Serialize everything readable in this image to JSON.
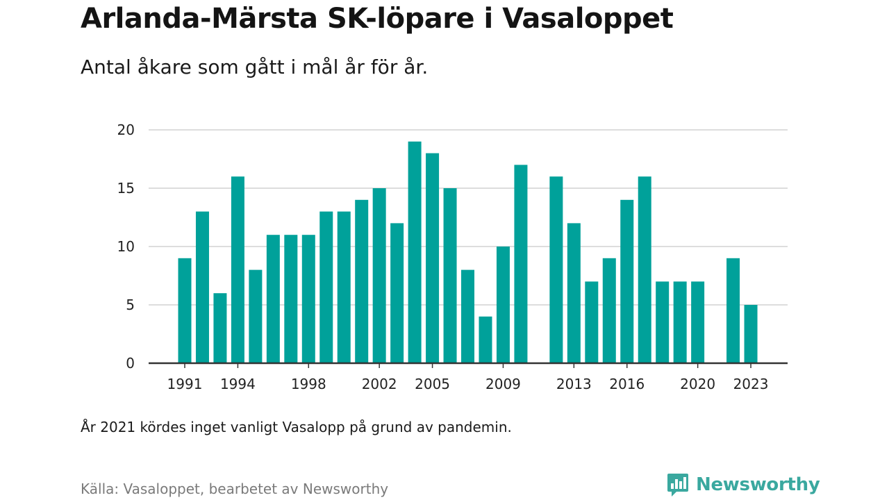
{
  "title": "Arlanda-Märsta SK-löpare i Vasaloppet",
  "subtitle": "Antal åkare som gått i mål år för år.",
  "note": "År 2021 kördes inget vanligt Vasalopp på grund av pandemin.",
  "source": "Källa: Vasaloppet, bearbetet av Newsworthy",
  "brand": {
    "name": "Newsworthy",
    "icon": "newsworthy-logo-icon"
  },
  "colors": {
    "bar": "#00a19a",
    "grid": "#dddddd",
    "axis": "#333333",
    "brand": "#3aa89f"
  },
  "chart_data": {
    "type": "bar",
    "x": [
      1991,
      1992,
      1993,
      1994,
      1995,
      1996,
      1997,
      1998,
      1999,
      2000,
      2001,
      2002,
      2003,
      2004,
      2005,
      2006,
      2007,
      2008,
      2009,
      2010,
      2011,
      2012,
      2013,
      2014,
      2015,
      2016,
      2017,
      2018,
      2019,
      2020,
      2021,
      2022,
      2023
    ],
    "values": [
      9,
      13,
      6,
      16,
      8,
      11,
      11,
      11,
      13,
      13,
      14,
      15,
      12,
      19,
      18,
      15,
      8,
      4,
      10,
      17,
      null,
      16,
      12,
      7,
      9,
      14,
      16,
      7,
      7,
      7,
      null,
      9,
      5
    ],
    "xticks": [
      "1991",
      "1994",
      "1998",
      "2002",
      "2005",
      "2009",
      "2013",
      "2016",
      "2020",
      "2023"
    ],
    "yticks": [
      "0",
      "5",
      "10",
      "15",
      "20"
    ],
    "ylim": [
      0,
      20
    ],
    "grid": true,
    "legend": "none"
  }
}
